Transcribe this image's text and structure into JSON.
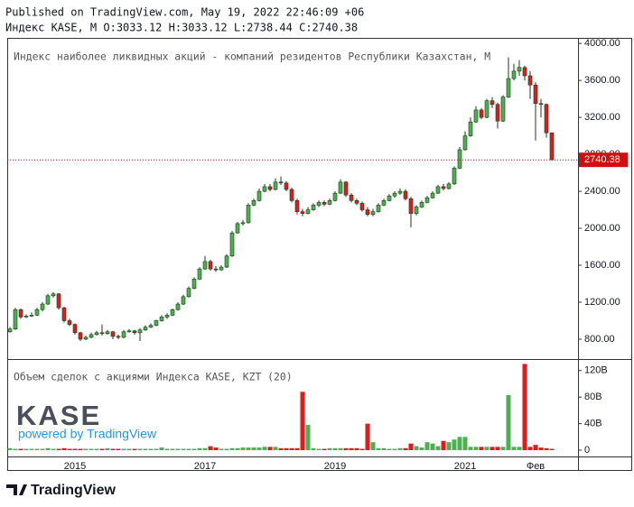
{
  "header": {
    "published": "Published on TradingView.com, May 19, 2022 22:46:09 +06",
    "legend": "Индекс KASE, M O:3033.12 H:3033.12 L:2738.44 C:2740.38"
  },
  "footer": {
    "logo": "KASE",
    "powered": "powered by TradingView",
    "brand": "TradingView"
  },
  "chart_data": [
    {
      "type": "candlestick",
      "title": "Индекс наиболее ликвидных акций - компаний резидентов Республики Казахстан, М",
      "categories": [
        null,
        null,
        null,
        null,
        null,
        null,
        null,
        null,
        null,
        null,
        null,
        null,
        "2015",
        null,
        null,
        null,
        null,
        null,
        null,
        null,
        null,
        null,
        null,
        null,
        null,
        null,
        null,
        null,
        null,
        null,
        null,
        null,
        null,
        null,
        null,
        null,
        "2017",
        null,
        null,
        null,
        null,
        null,
        null,
        null,
        null,
        null,
        null,
        null,
        null,
        null,
        null,
        null,
        null,
        null,
        null,
        null,
        null,
        null,
        null,
        null,
        "2019",
        null,
        null,
        null,
        null,
        null,
        null,
        null,
        null,
        null,
        null,
        null,
        null,
        null,
        null,
        null,
        null,
        null,
        null,
        null,
        null,
        null,
        null,
        null,
        "2021",
        null,
        null,
        null,
        null,
        null,
        null,
        null,
        null,
        null,
        null,
        null,
        null,
        "Фев",
        null,
        null,
        null
      ],
      "open": [
        880,
        910,
        1120,
        1040,
        1050,
        1060,
        1120,
        1180,
        1270,
        1290,
        1140,
        1000,
        960,
        870,
        800,
        820,
        850,
        870,
        860,
        880,
        830,
        820,
        880,
        890,
        870,
        900,
        930,
        950,
        1000,
        1040,
        1060,
        1120,
        1180,
        1260,
        1350,
        1450,
        1560,
        1640,
        1560,
        1550,
        1580,
        1700,
        1950,
        2050,
        2060,
        2250,
        2300,
        2400,
        2450,
        2420,
        2500,
        2490,
        2420,
        2300,
        2180,
        2160,
        2200,
        2250,
        2280,
        2260,
        2300,
        2380,
        2500,
        2360,
        2300,
        2270,
        2200,
        2150,
        2180,
        2250,
        2300,
        2350,
        2380,
        2400,
        2320,
        2160,
        2230,
        2280,
        2330,
        2380,
        2450,
        2430,
        2480,
        2650,
        2850,
        3000,
        3150,
        3280,
        3200,
        3380,
        3340,
        3160,
        3420,
        3620,
        3700,
        3740,
        3650,
        3550,
        3350,
        3340,
        3033.12
      ],
      "high": [
        930,
        1140,
        1130,
        1070,
        1090,
        1140,
        1200,
        1290,
        1310,
        1300,
        1150,
        1020,
        970,
        880,
        840,
        870,
        890,
        960,
        900,
        890,
        850,
        900,
        910,
        900,
        920,
        950,
        970,
        1010,
        1060,
        1080,
        1130,
        1200,
        1280,
        1370,
        1470,
        1580,
        1700,
        1660,
        1590,
        1600,
        1720,
        1970,
        2070,
        2090,
        2270,
        2320,
        2430,
        2480,
        2480,
        2540,
        2560,
        2510,
        2440,
        2320,
        2210,
        2230,
        2270,
        2300,
        2300,
        2320,
        2400,
        2530,
        2510,
        2380,
        2320,
        2290,
        2230,
        2210,
        2270,
        2320,
        2370,
        2400,
        2430,
        2420,
        2340,
        2250,
        2300,
        2350,
        2400,
        2470,
        2480,
        2500,
        2670,
        2880,
        3050,
        3200,
        3320,
        3300,
        3400,
        3420,
        3360,
        3440,
        3850,
        3780,
        3820,
        3760,
        3700,
        3580,
        3400,
        3350,
        3033.12
      ],
      "low": [
        870,
        900,
        1020,
        1030,
        1040,
        1050,
        1100,
        1170,
        1250,
        1120,
        980,
        940,
        850,
        780,
        790,
        810,
        840,
        840,
        850,
        800,
        800,
        810,
        870,
        850,
        780,
        890,
        920,
        940,
        990,
        1020,
        1050,
        1110,
        1170,
        1250,
        1340,
        1440,
        1550,
        1540,
        1530,
        1540,
        1570,
        1690,
        1940,
        2030,
        2050,
        2240,
        2290,
        2390,
        2400,
        2410,
        2470,
        2400,
        2280,
        2150,
        2130,
        2150,
        2190,
        2230,
        2240,
        2250,
        2290,
        2370,
        2340,
        2280,
        2250,
        2180,
        2130,
        2130,
        2170,
        2240,
        2290,
        2330,
        2360,
        2300,
        2010,
        2140,
        2220,
        2270,
        2320,
        2370,
        2410,
        2420,
        2470,
        2640,
        2840,
        2990,
        3140,
        3180,
        3190,
        3300,
        3080,
        3150,
        3410,
        3600,
        3650,
        3600,
        3400,
        2950,
        3200,
        2980,
        2738.44
      ],
      "close": [
        910,
        1120,
        1040,
        1050,
        1060,
        1120,
        1180,
        1270,
        1290,
        1140,
        1000,
        960,
        870,
        800,
        820,
        850,
        870,
        860,
        880,
        830,
        820,
        880,
        890,
        870,
        900,
        930,
        950,
        1000,
        1040,
        1060,
        1120,
        1180,
        1260,
        1350,
        1450,
        1560,
        1640,
        1560,
        1550,
        1580,
        1700,
        1950,
        2050,
        2060,
        2250,
        2300,
        2400,
        2450,
        2420,
        2500,
        2490,
        2420,
        2300,
        2180,
        2160,
        2200,
        2250,
        2280,
        2260,
        2300,
        2380,
        2500,
        2360,
        2300,
        2270,
        2200,
        2150,
        2180,
        2250,
        2300,
        2350,
        2380,
        2400,
        2320,
        2160,
        2230,
        2280,
        2330,
        2380,
        2450,
        2430,
        2480,
        2650,
        2850,
        3000,
        3150,
        3280,
        3200,
        3380,
        3340,
        3160,
        3420,
        3620,
        3700,
        3740,
        3650,
        3550,
        3350,
        3340,
        3033.12,
        2740.38
      ],
      "up_color": "#4caf50",
      "down_color": "#e01b1b",
      "last_line_color": "#d01010",
      "ylim": [
        585,
        4060
      ],
      "yticks": [
        {
          "value": 800,
          "label": "800.00"
        },
        {
          "value": 1200,
          "label": "1200.00"
        },
        {
          "value": 1600,
          "label": "1600.00"
        },
        {
          "value": 2000,
          "label": "2000.00"
        },
        {
          "value": 2400,
          "label": "2400.00"
        },
        {
          "value": 2800,
          "label": "2800.00"
        },
        {
          "value": 3200,
          "label": "3200.00"
        },
        {
          "value": 3600,
          "label": "3600.00"
        },
        {
          "value": 4000,
          "label": "4000.00"
        }
      ]
    },
    {
      "type": "volume",
      "title": "Объем сделок с акциями Индекса KASE, KZT (20)",
      "values": [
        3,
        2,
        2,
        2,
        2,
        2,
        2,
        3,
        2,
        2,
        3,
        2,
        2,
        2,
        2,
        2,
        2,
        2,
        3,
        2,
        2,
        2,
        2,
        2,
        2,
        2,
        2,
        2,
        4,
        2,
        2,
        2,
        2,
        2,
        2,
        3,
        3,
        6,
        4,
        2,
        2,
        3,
        3,
        4,
        4,
        4,
        4,
        5,
        5,
        5,
        3,
        3,
        3,
        3,
        88,
        38,
        3,
        2,
        2,
        3,
        3,
        3,
        3,
        3,
        3,
        2,
        40,
        12,
        3,
        3,
        2,
        2,
        3,
        3,
        10,
        6,
        4,
        12,
        10,
        6,
        14,
        12,
        16,
        20,
        20,
        5,
        5,
        5,
        5,
        5,
        5,
        5,
        83,
        5,
        5,
        130,
        5,
        8,
        4,
        3,
        2
      ],
      "ylim": [
        -9.5,
        136
      ],
      "yticks": [
        0,
        {
          "value": 40,
          "label": "40B"
        },
        {
          "value": 80,
          "label": "80B"
        },
        {
          "value": 120,
          "label": "120B"
        }
      ]
    }
  ]
}
